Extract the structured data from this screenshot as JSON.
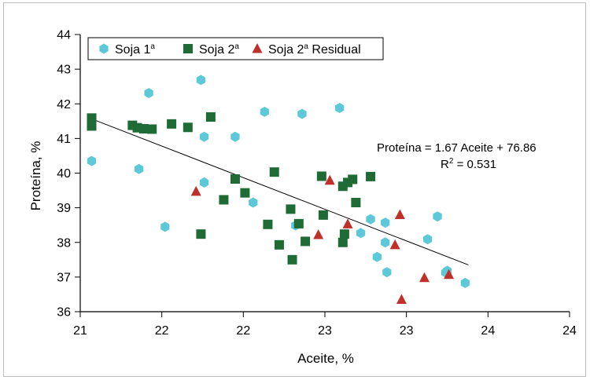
{
  "chart_data": {
    "type": "scatter",
    "title": "",
    "xlabel": "Aceite, %",
    "ylabel": "Proteína, %",
    "xlim": [
      21,
      24
    ],
    "ylim": [
      36,
      44
    ],
    "x_ticks": [
      21,
      21.5,
      22,
      22.5,
      23,
      23.5,
      24
    ],
    "x_tick_labels": [
      "21",
      "22",
      "22",
      "23",
      "23",
      "24",
      "24"
    ],
    "y_ticks": [
      36,
      37,
      38,
      39,
      40,
      41,
      42,
      43,
      44
    ],
    "y_tick_labels": [
      "36",
      "37",
      "38",
      "39",
      "40",
      "41",
      "42",
      "43",
      "44"
    ],
    "legend": {
      "placement": "top-left"
    },
    "series": [
      {
        "name": "Soja 1",
        "name_sup": "a",
        "marker": "hexagon",
        "color": "#5cc8d8",
        "points": [
          [
            21.07,
            40.35
          ],
          [
            21.36,
            40.12
          ],
          [
            21.42,
            42.31
          ],
          [
            21.74,
            42.69
          ],
          [
            21.52,
            38.45
          ],
          [
            21.76,
            41.05
          ],
          [
            21.76,
            39.73
          ],
          [
            21.95,
            41.05
          ],
          [
            22.06,
            39.15
          ],
          [
            22.13,
            41.77
          ],
          [
            22.36,
            41.71
          ],
          [
            22.32,
            38.49
          ],
          [
            22.59,
            41.88
          ],
          [
            22.72,
            38.27
          ],
          [
            22.78,
            38.67
          ],
          [
            22.82,
            37.58
          ],
          [
            22.87,
            38.57
          ],
          [
            22.87,
            38.0
          ],
          [
            22.88,
            37.14
          ],
          [
            23.13,
            38.09
          ],
          [
            23.19,
            38.75
          ],
          [
            23.25,
            37.18
          ],
          [
            23.24,
            37.13
          ],
          [
            23.36,
            36.83
          ]
        ]
      },
      {
        "name": "Soja 2",
        "name_sup": "a",
        "marker": "square",
        "color": "#1f6b35",
        "points": [
          [
            21.07,
            41.59
          ],
          [
            21.07,
            41.36
          ],
          [
            21.32,
            41.38
          ],
          [
            21.35,
            41.31
          ],
          [
            21.39,
            41.28
          ],
          [
            21.44,
            41.27
          ],
          [
            21.56,
            41.42
          ],
          [
            21.66,
            41.32
          ],
          [
            21.8,
            41.62
          ],
          [
            21.74,
            38.24
          ],
          [
            21.88,
            39.23
          ],
          [
            21.95,
            39.83
          ],
          [
            22.01,
            39.43
          ],
          [
            22.15,
            38.52
          ],
          [
            22.19,
            40.03
          ],
          [
            22.22,
            37.93
          ],
          [
            22.29,
            38.96
          ],
          [
            22.3,
            37.5
          ],
          [
            22.34,
            38.54
          ],
          [
            22.38,
            38.03
          ],
          [
            22.48,
            39.91
          ],
          [
            22.49,
            38.79
          ],
          [
            22.61,
            39.62
          ],
          [
            22.64,
            39.73
          ],
          [
            22.67,
            39.82
          ],
          [
            22.62,
            38.24
          ],
          [
            22.61,
            38.0
          ],
          [
            22.69,
            39.15
          ],
          [
            22.78,
            39.9
          ]
        ]
      },
      {
        "name": "Soja 2",
        "name_sup": "a",
        "name_suffix": " Residual",
        "marker": "triangle",
        "color": "#c0302a",
        "points": [
          [
            21.71,
            39.47
          ],
          [
            22.46,
            38.22
          ],
          [
            22.53,
            39.79
          ],
          [
            22.64,
            38.53
          ],
          [
            22.93,
            37.93
          ],
          [
            22.96,
            38.8
          ],
          [
            22.97,
            36.35
          ],
          [
            23.11,
            36.98
          ],
          [
            23.26,
            37.07
          ]
        ]
      }
    ],
    "trendline": {
      "x_range": [
        21.05,
        23.38
      ]
    },
    "equation": "Proteína = 1.67 Aceite + 76.86",
    "r2_prefix": "R",
    "r2_sup": "2",
    "r2_value": " = 0.531"
  }
}
